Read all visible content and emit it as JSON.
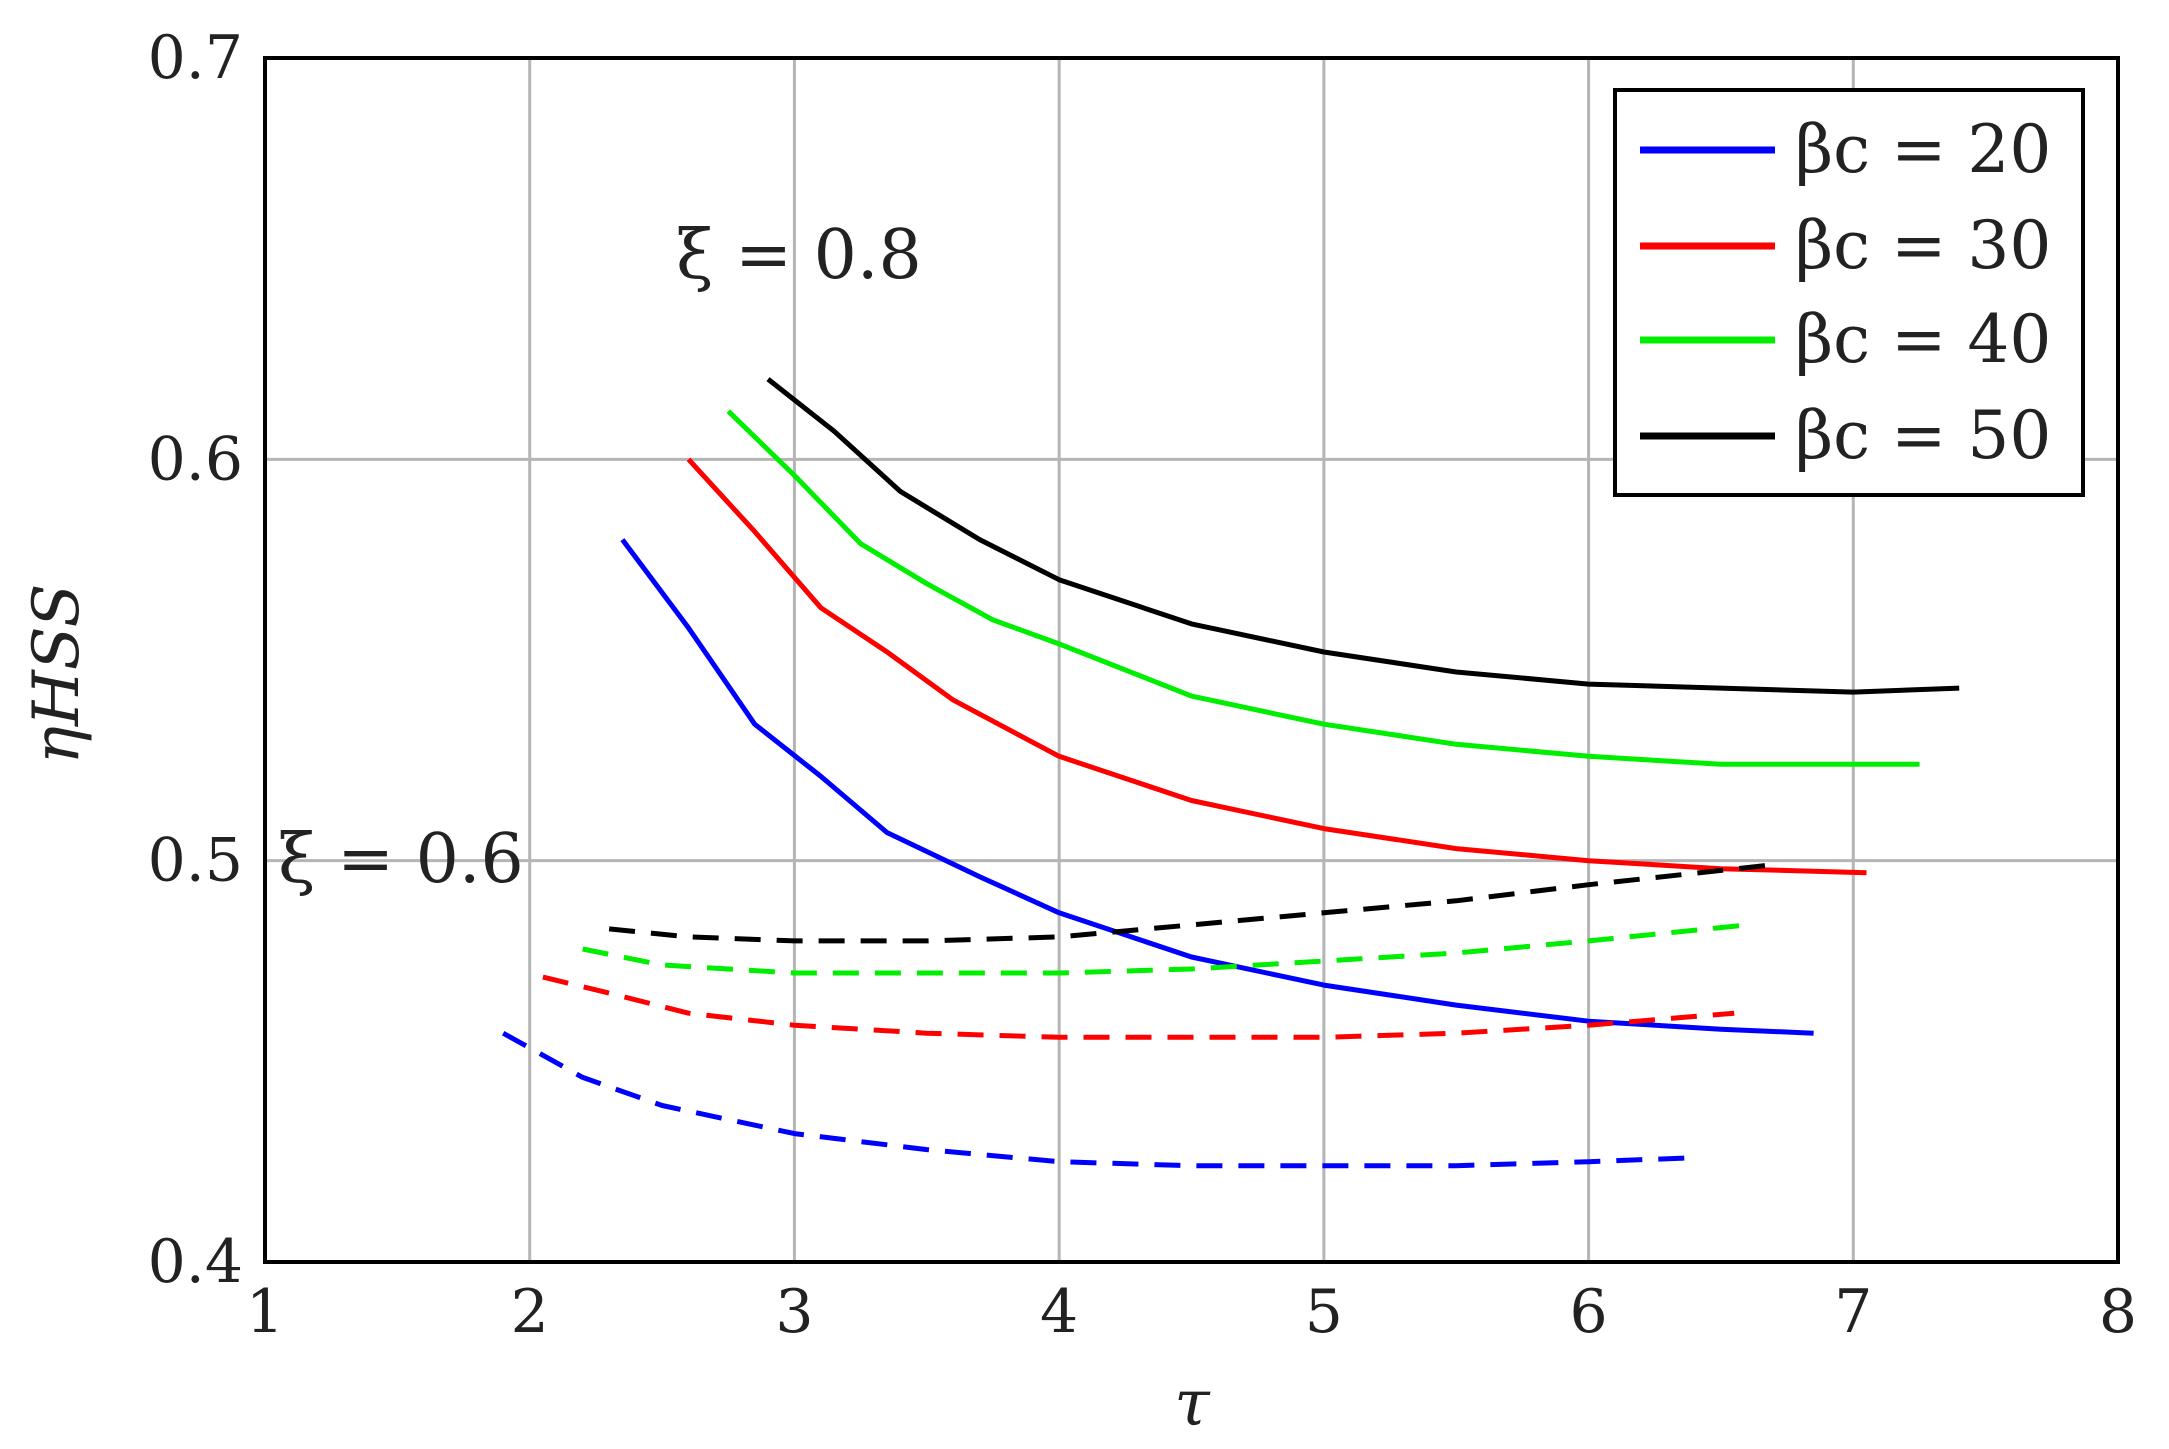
{
  "chart_data": {
    "type": "line",
    "xlabel": "τ",
    "ylabel": "ηHSS",
    "xlim": [
      1,
      8
    ],
    "ylim": [
      0.4,
      0.7
    ],
    "xticks": [
      "1",
      "2",
      "3",
      "4",
      "5",
      "6",
      "7",
      "8"
    ],
    "yticks": [
      "0.4",
      "0.5",
      "0.6",
      "0.7"
    ],
    "grid": true,
    "legend_position": "top-right",
    "legend": [
      "βc = 20",
      "βc = 30",
      "βc = 40",
      "βc = 50"
    ],
    "annotations": [
      "ξ = 0.8",
      "ξ = 0.6"
    ],
    "colors": {
      "b20": "#0000ff",
      "b30": "#ff0000",
      "b40": "#00ee00",
      "b50": "#000000"
    },
    "series": [
      {
        "name": "βc = 20",
        "group": "ξ = 0.8",
        "style": "solid",
        "color_key": "b20",
        "x": [
          2.35,
          2.6,
          2.85,
          3.1,
          3.35,
          3.7,
          4.0,
          4.5,
          5.0,
          5.5,
          6.0,
          6.5,
          6.85
        ],
        "y": [
          0.58,
          0.558,
          0.534,
          0.521,
          0.507,
          0.496,
          0.487,
          0.476,
          0.469,
          0.464,
          0.46,
          0.458,
          0.457
        ]
      },
      {
        "name": "βc = 30",
        "group": "ξ = 0.8",
        "style": "solid",
        "color_key": "b30",
        "x": [
          2.6,
          2.85,
          3.1,
          3.35,
          3.6,
          4.0,
          4.5,
          5.0,
          5.5,
          6.0,
          6.5,
          7.05
        ],
        "y": [
          0.6,
          0.582,
          0.563,
          0.552,
          0.54,
          0.526,
          0.515,
          0.508,
          0.503,
          0.5,
          0.498,
          0.497
        ]
      },
      {
        "name": "βc = 40",
        "group": "ξ = 0.8",
        "style": "solid",
        "color_key": "b40",
        "x": [
          2.75,
          3.0,
          3.25,
          3.5,
          3.75,
          4.0,
          4.5,
          5.0,
          5.5,
          6.0,
          6.5,
          7.25
        ],
        "y": [
          0.612,
          0.596,
          0.579,
          0.569,
          0.56,
          0.554,
          0.541,
          0.534,
          0.529,
          0.526,
          0.524,
          0.524
        ]
      },
      {
        "name": "βc = 50",
        "group": "ξ = 0.8",
        "style": "solid",
        "color_key": "b50",
        "x": [
          2.9,
          3.15,
          3.4,
          3.7,
          4.0,
          4.5,
          5.0,
          5.5,
          6.0,
          6.5,
          7.0,
          7.4
        ],
        "y": [
          0.62,
          0.607,
          0.592,
          0.58,
          0.57,
          0.559,
          0.552,
          0.547,
          0.544,
          0.543,
          0.542,
          0.543
        ]
      },
      {
        "name": "βc = 20",
        "group": "ξ = 0.6",
        "style": "dashed",
        "color_key": "b20",
        "x": [
          1.9,
          2.2,
          2.5,
          3.0,
          3.5,
          4.0,
          4.5,
          5.0,
          5.5,
          6.0,
          6.4
        ],
        "y": [
          0.457,
          0.446,
          0.439,
          0.432,
          0.428,
          0.425,
          0.424,
          0.424,
          0.424,
          0.425,
          0.426
        ]
      },
      {
        "name": "βc = 30",
        "group": "ξ = 0.6",
        "style": "dashed",
        "color_key": "b30",
        "x": [
          2.05,
          2.3,
          2.6,
          3.0,
          3.5,
          4.0,
          4.5,
          5.0,
          5.5,
          6.0,
          6.55
        ],
        "y": [
          0.471,
          0.467,
          0.462,
          0.459,
          0.457,
          0.456,
          0.456,
          0.456,
          0.457,
          0.459,
          0.462
        ]
      },
      {
        "name": "βc = 40",
        "group": "ξ = 0.6",
        "style": "dashed",
        "color_key": "b40",
        "x": [
          2.2,
          2.5,
          3.0,
          3.5,
          4.0,
          4.5,
          5.0,
          5.5,
          6.0,
          6.6
        ],
        "y": [
          0.478,
          0.474,
          0.472,
          0.472,
          0.472,
          0.473,
          0.475,
          0.477,
          0.48,
          0.484
        ]
      },
      {
        "name": "βc = 50",
        "group": "ξ = 0.6",
        "style": "dashed",
        "color_key": "b50",
        "x": [
          2.3,
          2.6,
          3.0,
          3.5,
          4.0,
          4.5,
          5.0,
          5.5,
          6.0,
          6.7
        ],
        "y": [
          0.483,
          0.481,
          0.48,
          0.48,
          0.481,
          0.484,
          0.487,
          0.49,
          0.494,
          0.499
        ]
      }
    ]
  }
}
